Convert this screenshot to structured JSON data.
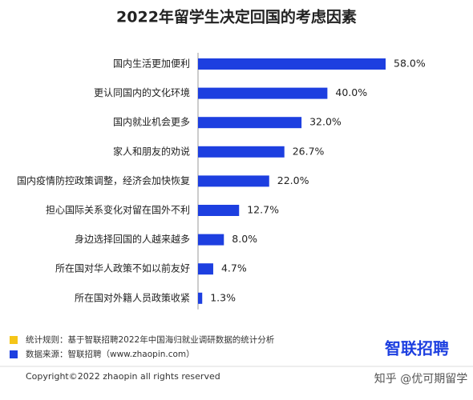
{
  "chart_data": {
    "type": "bar",
    "orientation": "horizontal",
    "title": "2022年留学生决定回国的考虑因素",
    "categories": [
      "国内生活更加便利",
      "更认同国内的文化环境",
      "国内就业机会更多",
      "家人和朋友的劝说",
      "国内疫情防控政策调整，经济会加快恢复",
      "担心国际关系变化对留在国外不利",
      "身边选择回国的人越来越多",
      "所在国对华人政策不如以前友好",
      "所在国对外籍人员政策收紧"
    ],
    "values": [
      58.0,
      40.0,
      32.0,
      26.7,
      22.0,
      12.7,
      8.0,
      4.7,
      1.3
    ],
    "value_labels": [
      "58.0%",
      "40.0%",
      "32.0%",
      "26.7%",
      "22.0%",
      "12.7%",
      "8.0%",
      "4.7%",
      "1.3%"
    ],
    "color": "#1d3fe0"
  },
  "notes": [
    {
      "text": "统计规则：基于智联招聘2022年中国海归就业调研数据的统计分析",
      "color": "#f5c518"
    },
    {
      "text": "数据来源：智联招聘（www.zhaopin.com）",
      "color": "#1d3fe0"
    }
  ],
  "logo": "智联招聘",
  "copyright": "Copyright©2022 zhaopin all rights reserved",
  "watermark": "知乎 @优可期留学"
}
